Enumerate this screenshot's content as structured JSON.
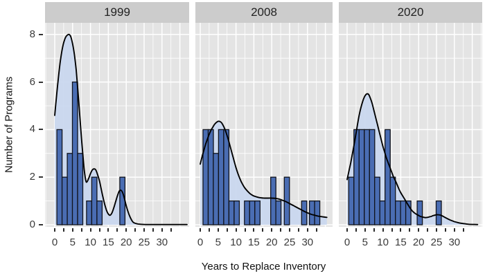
{
  "chart_data": {
    "type": "histogram_with_density",
    "title": "",
    "xlabel": "Years to Replace Inventory",
    "ylabel": "Number of Programs",
    "xlim": [
      -2.5,
      37.5
    ],
    "ylim": [
      0,
      8.5
    ],
    "x_major_ticks": [
      0,
      5,
      10,
      15,
      20,
      25,
      30
    ],
    "x_minor_tick_step": 2.5,
    "y_major_ticks": [
      0,
      2,
      4,
      6,
      8
    ],
    "y_minor_ticks": [
      1,
      3,
      5,
      7
    ],
    "grid": true,
    "legend": "none",
    "binwidth": 1.45,
    "facets": [
      {
        "label": "1999",
        "bars": [
          [
            0.6,
            4
          ],
          [
            2.05,
            2
          ],
          [
            3.5,
            3
          ],
          [
            4.95,
            6
          ],
          [
            6.4,
            3
          ],
          [
            8.9,
            1
          ],
          [
            10.35,
            2
          ],
          [
            11.8,
            1
          ],
          [
            18.2,
            2
          ]
        ],
        "density_curve": [
          [
            0,
            4.6
          ],
          [
            0.5,
            5.4
          ],
          [
            1,
            6.15
          ],
          [
            1.5,
            6.8
          ],
          [
            2,
            7.3
          ],
          [
            2.5,
            7.65
          ],
          [
            3,
            7.87
          ],
          [
            3.5,
            7.97
          ],
          [
            4,
            8.0
          ],
          [
            4.5,
            7.9
          ],
          [
            5,
            7.6
          ],
          [
            5.5,
            7.15
          ],
          [
            6,
            6.5
          ],
          [
            6.5,
            5.6
          ],
          [
            7,
            4.6
          ],
          [
            7.5,
            3.6
          ],
          [
            8,
            2.7
          ],
          [
            8.3,
            2.25
          ],
          [
            8.7,
            1.85
          ],
          [
            9,
            1.8
          ],
          [
            9.5,
            1.95
          ],
          [
            10,
            2.15
          ],
          [
            10.5,
            2.3
          ],
          [
            11,
            2.35
          ],
          [
            11.5,
            2.3
          ],
          [
            12,
            2.1
          ],
          [
            12.5,
            1.85
          ],
          [
            13,
            1.5
          ],
          [
            13.5,
            1.15
          ],
          [
            14,
            0.85
          ],
          [
            14.5,
            0.6
          ],
          [
            15,
            0.45
          ],
          [
            15.5,
            0.4
          ],
          [
            16,
            0.5
          ],
          [
            16.5,
            0.7
          ],
          [
            17,
            0.95
          ],
          [
            17.5,
            1.2
          ],
          [
            18,
            1.4
          ],
          [
            18.5,
            1.45
          ],
          [
            19,
            1.35
          ],
          [
            19.5,
            1.1
          ],
          [
            20,
            0.8
          ],
          [
            20.5,
            0.55
          ],
          [
            21,
            0.35
          ],
          [
            21.5,
            0.2
          ],
          [
            22,
            0.1
          ],
          [
            23,
            0.04
          ],
          [
            24,
            0.02
          ],
          [
            26,
            0.01
          ],
          [
            30,
            0.01
          ],
          [
            37,
            0.01
          ]
        ]
      },
      {
        "label": "2008",
        "bars": [
          [
            0.77,
            4
          ],
          [
            2.22,
            4
          ],
          [
            3.67,
            3
          ],
          [
            5.12,
            4
          ],
          [
            6.57,
            4
          ],
          [
            8.02,
            1
          ],
          [
            9.47,
            1
          ],
          [
            12.37,
            1
          ],
          [
            13.82,
            1
          ],
          [
            15.27,
            1
          ],
          [
            19.7,
            2
          ],
          [
            21.15,
            1
          ],
          [
            23.5,
            2
          ],
          [
            28.35,
            1
          ],
          [
            30.55,
            1
          ],
          [
            32.0,
            1
          ]
        ],
        "density_curve": [
          [
            0,
            2.55
          ],
          [
            0.5,
            2.85
          ],
          [
            1,
            3.12
          ],
          [
            1.5,
            3.38
          ],
          [
            2,
            3.6
          ],
          [
            2.5,
            3.8
          ],
          [
            3,
            3.97
          ],
          [
            3.5,
            4.1
          ],
          [
            4,
            4.22
          ],
          [
            4.5,
            4.3
          ],
          [
            5,
            4.35
          ],
          [
            5.5,
            4.34
          ],
          [
            6,
            4.28
          ],
          [
            6.5,
            4.15
          ],
          [
            7,
            3.98
          ],
          [
            7.5,
            3.75
          ],
          [
            8,
            3.5
          ],
          [
            8.5,
            3.22
          ],
          [
            9,
            2.95
          ],
          [
            9.5,
            2.67
          ],
          [
            10,
            2.4
          ],
          [
            10.5,
            2.17
          ],
          [
            11,
            1.97
          ],
          [
            11.5,
            1.8
          ],
          [
            12,
            1.66
          ],
          [
            12.5,
            1.54
          ],
          [
            13,
            1.45
          ],
          [
            13.5,
            1.37
          ],
          [
            14,
            1.3
          ],
          [
            14.5,
            1.25
          ],
          [
            15,
            1.21
          ],
          [
            16,
            1.16
          ],
          [
            17,
            1.13
          ],
          [
            18,
            1.12
          ],
          [
            19,
            1.12
          ],
          [
            20,
            1.12
          ],
          [
            21,
            1.11
          ],
          [
            22,
            1.08
          ],
          [
            23,
            1.03
          ],
          [
            24,
            0.97
          ],
          [
            25,
            0.89
          ],
          [
            26,
            0.81
          ],
          [
            27,
            0.73
          ],
          [
            28,
            0.65
          ],
          [
            29,
            0.57
          ],
          [
            30,
            0.5
          ],
          [
            31,
            0.44
          ],
          [
            32,
            0.4
          ],
          [
            33,
            0.36
          ],
          [
            34,
            0.34
          ],
          [
            35.4,
            0.31
          ]
        ]
      },
      {
        "label": "2020",
        "bars": [
          [
            0.45,
            2
          ],
          [
            1.9,
            4
          ],
          [
            3.35,
            4
          ],
          [
            4.8,
            4
          ],
          [
            6.25,
            4
          ],
          [
            7.7,
            2
          ],
          [
            9.15,
            1
          ],
          [
            10.6,
            4
          ],
          [
            12.05,
            2
          ],
          [
            13.5,
            1
          ],
          [
            14.95,
            1
          ],
          [
            16.4,
            1
          ],
          [
            19.6,
            1
          ],
          [
            24.9,
            1
          ]
        ],
        "density_curve": [
          [
            0,
            1.9
          ],
          [
            0.5,
            2.25
          ],
          [
            1,
            2.6
          ],
          [
            1.5,
            3.0
          ],
          [
            2,
            3.4
          ],
          [
            2.5,
            3.85
          ],
          [
            3,
            4.3
          ],
          [
            3.5,
            4.7
          ],
          [
            4,
            5.0
          ],
          [
            4.5,
            5.25
          ],
          [
            5,
            5.42
          ],
          [
            5.5,
            5.5
          ],
          [
            6,
            5.48
          ],
          [
            6.5,
            5.32
          ],
          [
            7,
            5.1
          ],
          [
            7.5,
            4.8
          ],
          [
            8,
            4.5
          ],
          [
            8.5,
            4.2
          ],
          [
            9,
            3.9
          ],
          [
            9.5,
            3.6
          ],
          [
            10,
            3.3
          ],
          [
            10.5,
            3.05
          ],
          [
            11,
            2.8
          ],
          [
            11.5,
            2.6
          ],
          [
            12,
            2.4
          ],
          [
            12.5,
            2.2
          ],
          [
            13,
            2.0
          ],
          [
            13.5,
            1.85
          ],
          [
            14,
            1.68
          ],
          [
            14.5,
            1.5
          ],
          [
            15,
            1.35
          ],
          [
            15.5,
            1.22
          ],
          [
            16,
            1.1
          ],
          [
            16.5,
            0.97
          ],
          [
            17,
            0.85
          ],
          [
            17.5,
            0.73
          ],
          [
            18,
            0.62
          ],
          [
            18.5,
            0.54
          ],
          [
            19,
            0.48
          ],
          [
            19.5,
            0.43
          ],
          [
            20,
            0.39
          ],
          [
            20.5,
            0.35
          ],
          [
            21,
            0.33
          ],
          [
            21.5,
            0.31
          ],
          [
            22,
            0.3
          ],
          [
            22.5,
            0.31
          ],
          [
            23,
            0.33
          ],
          [
            23.5,
            0.35
          ],
          [
            24,
            0.38
          ],
          [
            24.5,
            0.4
          ],
          [
            25,
            0.42
          ],
          [
            25.5,
            0.42
          ],
          [
            26,
            0.41
          ],
          [
            26.5,
            0.38
          ],
          [
            27,
            0.34
          ],
          [
            27.5,
            0.3
          ],
          [
            28,
            0.26
          ],
          [
            28.5,
            0.22
          ],
          [
            29,
            0.19
          ],
          [
            29.5,
            0.16
          ],
          [
            30,
            0.13
          ],
          [
            31,
            0.09
          ],
          [
            32,
            0.06
          ],
          [
            33,
            0.04
          ],
          [
            34,
            0.02
          ],
          [
            36.5,
            0.01
          ]
        ]
      }
    ],
    "colors": {
      "bar_fill": "#4a6db3",
      "bar_stroke": "#10131c",
      "density_fill": "#c8d6ee",
      "density_stroke": "#000000",
      "panel_background": "#e4e4e4",
      "strip_background": "#cccccc",
      "gridline": "#ffffff",
      "tick_text": "#3a3a3a",
      "title_text": "#111111"
    }
  }
}
